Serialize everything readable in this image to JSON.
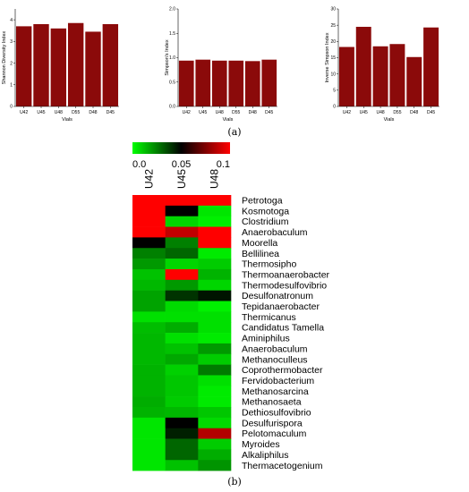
{
  "panel_labels": {
    "a": "(a)",
    "b": "(b)"
  },
  "colors": {
    "bar": "#8b0a0a",
    "heat_low": "#00ff00",
    "heat_mid": "#000000",
    "heat_high": "#ff0000"
  },
  "chart_data": [
    {
      "type": "bar",
      "categories": [
        "U42",
        "U45",
        "U48",
        "D55",
        "D48",
        "D45"
      ],
      "values": [
        3.7,
        3.8,
        3.6,
        3.85,
        3.45,
        3.8
      ],
      "xlabel": "Vials",
      "ylabel": "Shannon Diversity Index",
      "ylim": [
        0,
        4.5
      ],
      "yticks": [
        "0",
        "1",
        "2",
        "3",
        "4"
      ],
      "ytick_values": [
        0,
        1,
        2,
        3,
        4
      ]
    },
    {
      "type": "bar",
      "categories": [
        "U42",
        "U45",
        "U48",
        "D55",
        "D48",
        "D45"
      ],
      "values": [
        0.94,
        0.96,
        0.94,
        0.94,
        0.93,
        0.96
      ],
      "xlabel": "Vials",
      "ylabel": "Simpson's Index",
      "ylim": [
        0,
        2.0
      ],
      "yticks": [
        "0.0",
        "0.5",
        "1.0",
        "1.5",
        "2.0"
      ],
      "ytick_values": [
        0,
        0.5,
        1.0,
        1.5,
        2.0
      ]
    },
    {
      "type": "bar",
      "categories": [
        "U42",
        "U45",
        "U48",
        "D55",
        "D48",
        "D45"
      ],
      "values": [
        18.3,
        24.5,
        18.5,
        19.2,
        15.2,
        24.3
      ],
      "xlabel": "Vials",
      "ylabel": "Inverse Simpson Index",
      "ylim": [
        0,
        30
      ],
      "yticks": [
        "0",
        "5",
        "10",
        "15",
        "20",
        "25",
        "30"
      ],
      "ytick_values": [
        0,
        5,
        10,
        15,
        20,
        25,
        30
      ]
    },
    {
      "type": "heatmap",
      "columns": [
        "U42",
        "U45",
        "U48"
      ],
      "rows": [
        "Petrotoga",
        "Kosmotoga",
        "Clostridium",
        "Anaerobaculum",
        "Moorella",
        "Bellilinea",
        "Thermosipho",
        "Thermoanaerobacter",
        "Thermodesulfovibrio",
        "Desulfonatronum",
        "Tepidanaerobacter",
        "Thermicanus",
        "Candidatus Tamella",
        "Aminiphilus",
        "Anaerobaculum",
        "Methanoculleus",
        "Coprothermobacter",
        "Fervidobacterium",
        "Methanosarcina",
        "Methanosaeta",
        "Dethiosulfovibrio",
        "Desulfurispora",
        "Pelotomaculum",
        "Myroides",
        "Alkaliphilus",
        "Thermacetogenium"
      ],
      "scale_min": 0.0,
      "scale_mid": 0.05,
      "scale_max": 0.1,
      "scale_ticks": [
        "0.0",
        "0.05",
        "0.1"
      ],
      "scale_tick_values": [
        0.0,
        0.05,
        0.1
      ],
      "values": [
        [
          0.1,
          0.1,
          0.1
        ],
        [
          0.1,
          0.05,
          0.005
        ],
        [
          0.1,
          0.008,
          0.003
        ],
        [
          0.1,
          0.088,
          0.1
        ],
        [
          0.05,
          0.025,
          0.1
        ],
        [
          0.025,
          0.03,
          0.004
        ],
        [
          0.02,
          0.008,
          0.01
        ],
        [
          0.012,
          0.1,
          0.015
        ],
        [
          0.014,
          0.02,
          0.008
        ],
        [
          0.018,
          0.04,
          0.046
        ],
        [
          0.018,
          0.007,
          0.003
        ],
        [
          0.006,
          0.006,
          0.006
        ],
        [
          0.013,
          0.016,
          0.006
        ],
        [
          0.014,
          0.006,
          0.004
        ],
        [
          0.014,
          0.012,
          0.02
        ],
        [
          0.014,
          0.017,
          0.01
        ],
        [
          0.015,
          0.009,
          0.026
        ],
        [
          0.015,
          0.011,
          0.006
        ],
        [
          0.015,
          0.011,
          0.004
        ],
        [
          0.016,
          0.01,
          0.004
        ],
        [
          0.015,
          0.014,
          0.011
        ],
        [
          0.005,
          0.05,
          0.007
        ],
        [
          0.005,
          0.044,
          0.085
        ],
        [
          0.005,
          0.03,
          0.01
        ],
        [
          0.005,
          0.03,
          0.016
        ],
        [
          0.005,
          0.012,
          0.021
        ]
      ]
    }
  ]
}
